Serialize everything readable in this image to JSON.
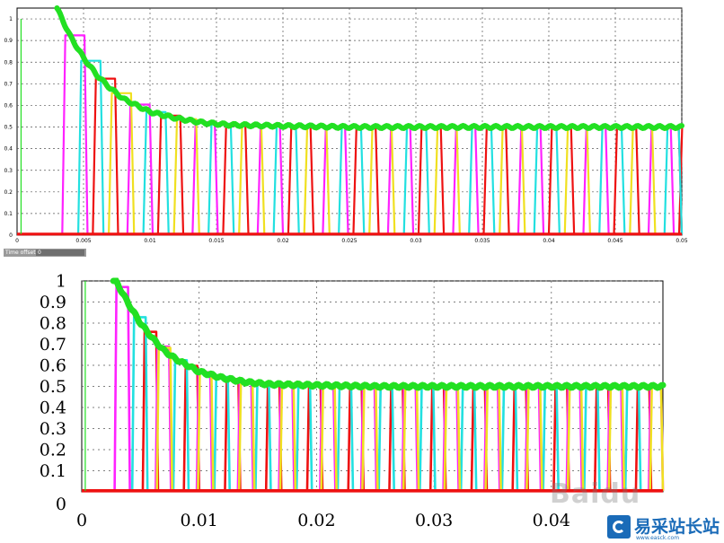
{
  "chart_data": [
    {
      "type": "line",
      "title": "",
      "xlabel": "",
      "ylabel": "",
      "xlim": [
        0,
        0.05
      ],
      "ylim": [
        0,
        1.05
      ],
      "x_ticks": [
        "0",
        "0.005",
        "0.01",
        "0.015",
        "0.02",
        "0.025",
        "0.03",
        "0.035",
        "0.04",
        "0.045",
        "0.05"
      ],
      "y_ticks": [
        "0",
        "0.1",
        "0.2",
        "0.3",
        "0.4",
        "0.5",
        "0.6",
        "0.7",
        "0.8",
        "0.9",
        "1"
      ],
      "grid": true,
      "series": [
        {
          "color": "#22e022",
          "role": "envelope",
          "x": [
            0.003,
            0.004,
            0.005,
            0.006,
            0.007,
            0.008,
            0.009,
            0.01,
            0.012,
            0.014,
            0.016,
            0.02,
            0.025,
            0.03,
            0.04,
            0.05
          ],
          "y": [
            1.05,
            0.92,
            0.82,
            0.74,
            0.68,
            0.63,
            0.6,
            0.57,
            0.54,
            0.52,
            0.51,
            0.505,
            0.5,
            0.5,
            0.5,
            0.5
          ]
        },
        {
          "color": "#ee1111",
          "role": "pulses",
          "start": 0.0057,
          "period": 0.0049,
          "width": 0.0019
        },
        {
          "color": "#ff22ff",
          "role": "pulses",
          "start": 0.0034,
          "period": 0.0049,
          "width": 0.0019
        },
        {
          "color": "#22e0e0",
          "role": "pulses",
          "start": 0.0046,
          "period": 0.0049,
          "width": 0.0019
        },
        {
          "color": "#f0e020",
          "role": "pulses",
          "start": 0.0069,
          "period": 0.0049,
          "width": 0.0019
        }
      ]
    },
    {
      "type": "line",
      "title": "",
      "xlabel": "",
      "ylabel": "",
      "xlim": [
        0,
        0.0495
      ],
      "ylim": [
        0,
        1
      ],
      "x_ticks": [
        "0",
        "0.01",
        "0.02",
        "0.03",
        "0.04"
      ],
      "y_ticks": [
        "0",
        "0.1",
        "0.2",
        "0.3",
        "0.4",
        "0.5",
        "0.6",
        "0.7",
        "0.8",
        "0.9",
        "1"
      ],
      "grid": true,
      "series": [
        {
          "color": "#22e022",
          "role": "envelope",
          "x": [
            0.0027,
            0.004,
            0.005,
            0.006,
            0.007,
            0.008,
            0.009,
            0.01,
            0.012,
            0.014,
            0.016,
            0.02,
            0.025,
            0.03,
            0.04,
            0.0495
          ],
          "y": [
            1.02,
            0.89,
            0.8,
            0.73,
            0.67,
            0.63,
            0.6,
            0.57,
            0.54,
            0.52,
            0.51,
            0.505,
            0.5,
            0.5,
            0.5,
            0.5
          ]
        },
        {
          "color": "#ee1111",
          "role": "pulses",
          "start": 0.0052,
          "period": 0.0035,
          "width": 0.0013
        },
        {
          "color": "#ff22ff",
          "role": "pulses",
          "start": 0.0028,
          "period": 0.0035,
          "width": 0.0013
        },
        {
          "color": "#22e0e0",
          "role": "pulses",
          "start": 0.0043,
          "period": 0.0035,
          "width": 0.0013
        },
        {
          "color": "#f0e020",
          "role": "pulses",
          "start": 0.0064,
          "period": 0.0035,
          "width": 0.0013
        }
      ]
    }
  ],
  "toolbar": {
    "time_offset_label": "Time offset:",
    "time_offset_value": "0"
  },
  "watermark": {
    "text": "Baidu"
  },
  "logo": {
    "name": "易采站长站",
    "sub": "www.easck.com"
  }
}
